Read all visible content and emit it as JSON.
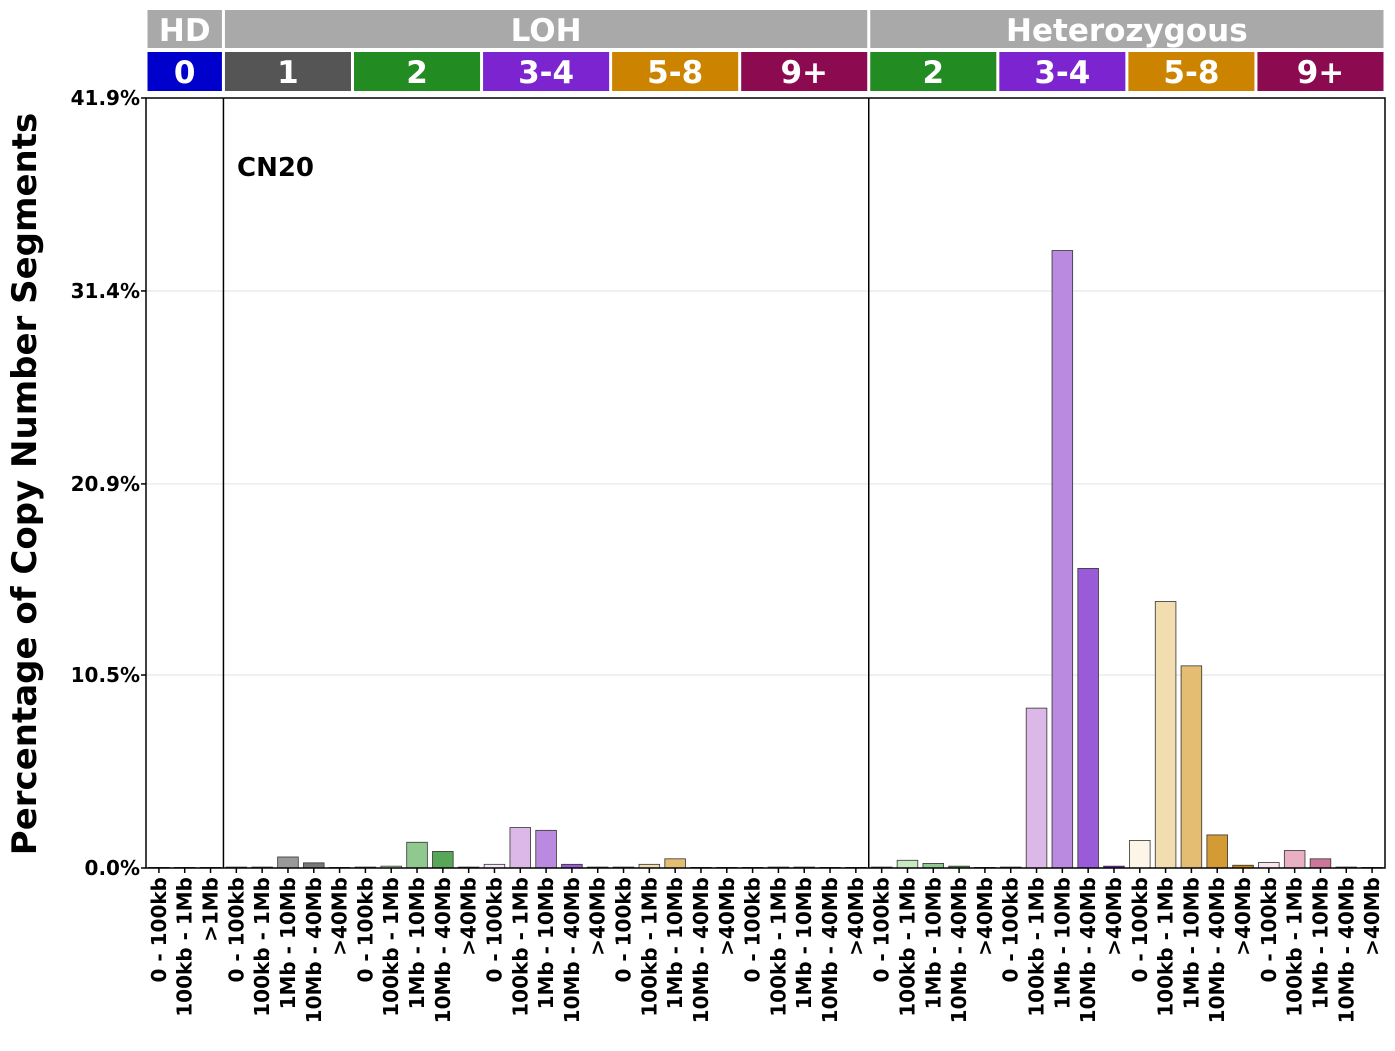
{
  "chart_data": {
    "type": "bar",
    "ylabel": "Percentage of Copy Number Segments",
    "annotation": "CN20",
    "ylim": [
      0,
      41.9
    ],
    "y_ticks": [
      "0.0%",
      "10.5%",
      "20.9%",
      "31.4%",
      "41.9%"
    ],
    "y_tick_values": [
      0,
      10.5,
      20.9,
      31.4,
      41.9
    ],
    "grid": "horizontal",
    "categories": [
      "0 - 100kb",
      "100kb - 1Mb",
      ">1Mb",
      "0 - 100kb",
      "100kb - 1Mb",
      "1Mb - 10Mb",
      "10Mb - 40Mb",
      ">40Mb",
      "0 - 100kb",
      "100kb - 1Mb",
      "1Mb - 10Mb",
      "10Mb - 40Mb",
      ">40Mb",
      "0 - 100kb",
      "100kb - 1Mb",
      "1Mb - 10Mb",
      "10Mb - 40Mb",
      ">40Mb",
      "0 - 100kb",
      "100kb - 1Mb",
      "1Mb - 10Mb",
      "10Mb - 40Mb",
      ">40Mb",
      "0 - 100kb",
      "100kb - 1Mb",
      "1Mb - 10Mb",
      "10Mb - 40Mb",
      ">40Mb",
      "0 - 100kb",
      "100kb - 1Mb",
      "1Mb - 10Mb",
      "10Mb - 40Mb",
      ">40Mb",
      "0 - 100kb",
      "100kb - 1Mb",
      "1Mb - 10Mb",
      "10Mb - 40Mb",
      ">40Mb",
      "0 - 100kb",
      "100kb - 1Mb",
      "1Mb - 10Mb",
      "10Mb - 40Mb",
      ">40Mb",
      "0 - 100kb",
      "100kb - 1Mb",
      "1Mb - 10Mb",
      "10Mb - 40Mb",
      ">40Mb"
    ],
    "values": [
      0,
      0,
      0,
      0.05,
      0.05,
      0.6,
      0.28,
      0,
      0.05,
      0.1,
      1.4,
      0.9,
      0.05,
      0.2,
      2.2,
      2.05,
      0.2,
      0.05,
      0.05,
      0.2,
      0.5,
      0,
      0,
      0,
      0.05,
      0.05,
      0,
      0,
      0.05,
      0.42,
      0.25,
      0.1,
      0,
      0.05,
      8.7,
      33.6,
      16.3,
      0.1,
      1.5,
      14.5,
      11.0,
      1.8,
      0.15,
      0.3,
      0.95,
      0.5,
      0.05,
      0
    ],
    "bar_colors": [
      "#0000cc",
      "#0000cc",
      "#0000cc",
      "#f2f2f2",
      "#cccccc",
      "#999999",
      "#777777",
      "#555555",
      "#e5f5e0",
      "#c7e9c0",
      "#8fc98f",
      "#58a658",
      "#228b22",
      "#f3e8f8",
      "#dcb8e8",
      "#b98ae0",
      "#9a5bd8",
      "#7b24cf",
      "#fdf6e8",
      "#f2ddb0",
      "#e4bd72",
      "#d49a34",
      "#cc8400",
      "#fbe6ee",
      "#e9b0c4",
      "#cc7799",
      "#a8406c",
      "#8b0a50",
      "#e5f5e0",
      "#c7e9c0",
      "#8fc98f",
      "#58a658",
      "#228b22",
      "#f3e8f8",
      "#dcb8e8",
      "#b98ae0",
      "#9a5bd8",
      "#7b24cf",
      "#fdf6e8",
      "#f2ddb0",
      "#e4bd72",
      "#d49a34",
      "#cc8400",
      "#fbe6ee",
      "#e9b0c4",
      "#cc7799",
      "#a8406c",
      "#8b0a50"
    ],
    "top_groups": [
      {
        "label": "HD",
        "count": 3,
        "color": "#a9a9a9"
      },
      {
        "label": "LOH",
        "count": 25,
        "color": "#a9a9a9"
      },
      {
        "label": "Heterozygous",
        "count": 20,
        "color": "#a9a9a9"
      }
    ],
    "cn_groups": [
      {
        "label": "0",
        "count": 3,
        "color": "#0000cc"
      },
      {
        "label": "1",
        "count": 5,
        "color": "#555555"
      },
      {
        "label": "2",
        "count": 5,
        "color": "#228b22"
      },
      {
        "label": "3-4",
        "count": 5,
        "color": "#7b24cf"
      },
      {
        "label": "5-8",
        "count": 5,
        "color": "#cc8400"
      },
      {
        "label": "9+",
        "count": 5,
        "color": "#8b0a50"
      },
      {
        "label": "2",
        "count": 5,
        "color": "#228b22"
      },
      {
        "label": "3-4",
        "count": 5,
        "color": "#7b24cf"
      },
      {
        "label": "5-8",
        "count": 5,
        "color": "#cc8400"
      },
      {
        "label": "9+",
        "count": 5,
        "color": "#8b0a50"
      }
    ]
  }
}
